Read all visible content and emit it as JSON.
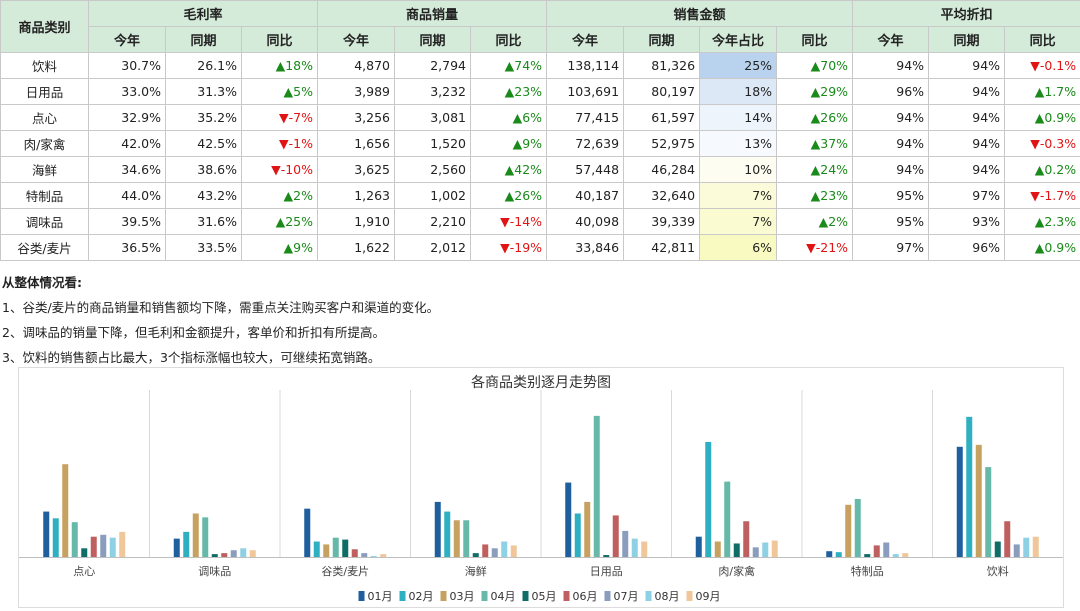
{
  "table": {
    "header": {
      "category": "商品类别",
      "groups": [
        {
          "label": "毛利率",
          "cols": [
            "今年",
            "同期",
            "同比"
          ]
        },
        {
          "label": "商品销量",
          "cols": [
            "今年",
            "同期",
            "同比"
          ]
        },
        {
          "label": "销售金额",
          "cols": [
            "今年",
            "同期",
            "今年占比",
            "同比"
          ]
        },
        {
          "label": "平均折扣",
          "cols": [
            "今年",
            "同期",
            "同比"
          ]
        }
      ]
    },
    "share_colors": [
      "#b9d3ee",
      "#dce8f6",
      "#eef4fb",
      "#f6f9fd",
      "#fdfdf1",
      "#fbfbd9",
      "#fbfbd2",
      "#f9f9c2"
    ],
    "up_arrow": "▲",
    "down_arrow": "▼",
    "rows": [
      {
        "category": "饮料",
        "margin_this": "30.7%",
        "margin_prev": "26.1%",
        "margin_yoy": "18%",
        "margin_dir": "up",
        "qty_this": "4,870",
        "qty_prev": "2,794",
        "qty_yoy": "74%",
        "qty_dir": "up",
        "amt_this": "138,114",
        "amt_prev": "81,326",
        "amt_share": "25%",
        "amt_yoy": "70%",
        "amt_dir": "up",
        "disc_this": "94%",
        "disc_prev": "94%",
        "disc_yoy": "-0.1%",
        "disc_dir": "down"
      },
      {
        "category": "日用品",
        "margin_this": "33.0%",
        "margin_prev": "31.3%",
        "margin_yoy": "5%",
        "margin_dir": "up",
        "qty_this": "3,989",
        "qty_prev": "3,232",
        "qty_yoy": "23%",
        "qty_dir": "up",
        "amt_this": "103,691",
        "amt_prev": "80,197",
        "amt_share": "18%",
        "amt_yoy": "29%",
        "amt_dir": "up",
        "disc_this": "96%",
        "disc_prev": "94%",
        "disc_yoy": "1.7%",
        "disc_dir": "up"
      },
      {
        "category": "点心",
        "margin_this": "32.9%",
        "margin_prev": "35.2%",
        "margin_yoy": "-7%",
        "margin_dir": "down",
        "qty_this": "3,256",
        "qty_prev": "3,081",
        "qty_yoy": "6%",
        "qty_dir": "up",
        "amt_this": "77,415",
        "amt_prev": "61,597",
        "amt_share": "14%",
        "amt_yoy": "26%",
        "amt_dir": "up",
        "disc_this": "94%",
        "disc_prev": "94%",
        "disc_yoy": "0.9%",
        "disc_dir": "up"
      },
      {
        "category": "肉/家禽",
        "margin_this": "42.0%",
        "margin_prev": "42.5%",
        "margin_yoy": "-1%",
        "margin_dir": "down",
        "qty_this": "1,656",
        "qty_prev": "1,520",
        "qty_yoy": "9%",
        "qty_dir": "up",
        "amt_this": "72,639",
        "amt_prev": "52,975",
        "amt_share": "13%",
        "amt_yoy": "37%",
        "amt_dir": "up",
        "disc_this": "94%",
        "disc_prev": "94%",
        "disc_yoy": "-0.3%",
        "disc_dir": "down"
      },
      {
        "category": "海鲜",
        "margin_this": "34.6%",
        "margin_prev": "38.6%",
        "margin_yoy": "-10%",
        "margin_dir": "down",
        "qty_this": "3,625",
        "qty_prev": "2,560",
        "qty_yoy": "42%",
        "qty_dir": "up",
        "amt_this": "57,448",
        "amt_prev": "46,284",
        "amt_share": "10%",
        "amt_yoy": "24%",
        "amt_dir": "up",
        "disc_this": "94%",
        "disc_prev": "94%",
        "disc_yoy": "0.2%",
        "disc_dir": "up"
      },
      {
        "category": "特制品",
        "margin_this": "44.0%",
        "margin_prev": "43.2%",
        "margin_yoy": "2%",
        "margin_dir": "up",
        "qty_this": "1,263",
        "qty_prev": "1,002",
        "qty_yoy": "26%",
        "qty_dir": "up",
        "amt_this": "40,187",
        "amt_prev": "32,640",
        "amt_share": "7%",
        "amt_yoy": "23%",
        "amt_dir": "up",
        "disc_this": "95%",
        "disc_prev": "97%",
        "disc_yoy": "-1.7%",
        "disc_dir": "down"
      },
      {
        "category": "调味品",
        "margin_this": "39.5%",
        "margin_prev": "31.6%",
        "margin_yoy": "25%",
        "margin_dir": "up",
        "qty_this": "1,910",
        "qty_prev": "2,210",
        "qty_yoy": "-14%",
        "qty_dir": "down",
        "amt_this": "40,098",
        "amt_prev": "39,339",
        "amt_share": "7%",
        "amt_yoy": "2%",
        "amt_dir": "up",
        "disc_this": "95%",
        "disc_prev": "93%",
        "disc_yoy": "2.3%",
        "disc_dir": "up"
      },
      {
        "category": "谷类/麦片",
        "margin_this": "36.5%",
        "margin_prev": "33.5%",
        "margin_yoy": "9%",
        "margin_dir": "up",
        "qty_this": "1,622",
        "qty_prev": "2,012",
        "qty_yoy": "-19%",
        "qty_dir": "down",
        "amt_this": "33,846",
        "amt_prev": "42,811",
        "amt_share": "6%",
        "amt_yoy": "-21%",
        "amt_dir": "down",
        "disc_this": "97%",
        "disc_prev": "96%",
        "disc_yoy": "0.9%",
        "disc_dir": "up"
      }
    ]
  },
  "notes": {
    "title": "从整体情况看:",
    "items": [
      "1、谷类/麦片的商品销量和销售额均下降，需重点关注购买客户和渠道的变化。",
      "2、调味品的销量下降，但毛利和金额提升，客单价和折扣有所提高。",
      "3、饮料的销售额占比最大，3个指标涨幅也较大，可继续拓宽销路。"
    ]
  },
  "chart_data": {
    "type": "bar",
    "title": "各商品类别逐月走势图",
    "categories": [
      "点心",
      "调味品",
      "谷类/麦片",
      "海鲜",
      "日用品",
      "肉/家禽",
      "特制品",
      "饮料"
    ],
    "series": [
      {
        "name": "01月",
        "color": "#1f5f9e",
        "values": [
          47,
          19,
          50,
          57,
          77,
          21,
          6,
          114
        ]
      },
      {
        "name": "02月",
        "color": "#2fb0c2",
        "values": [
          40,
          26,
          16,
          47,
          45,
          119,
          5,
          145
        ]
      },
      {
        "name": "03月",
        "color": "#c7a160",
        "values": [
          96,
          45,
          13,
          38,
          57,
          16,
          54,
          116
        ]
      },
      {
        "name": "04月",
        "color": "#66b9a9",
        "values": [
          36,
          41,
          20,
          38,
          146,
          78,
          60,
          93
        ]
      },
      {
        "name": "05月",
        "color": "#0e6d67",
        "values": [
          9,
          3,
          18,
          4,
          2,
          14,
          3,
          16
        ]
      },
      {
        "name": "06月",
        "color": "#c05f5f",
        "values": [
          21,
          4,
          8,
          13,
          43,
          37,
          12,
          37
        ]
      },
      {
        "name": "07月",
        "color": "#8a9dbd",
        "values": [
          23,
          7,
          4,
          9,
          27,
          10,
          15,
          13
        ]
      },
      {
        "name": "08月",
        "color": "#8fd1e4",
        "values": [
          20,
          9,
          1,
          16,
          19,
          15,
          3,
          20
        ]
      },
      {
        "name": "09月",
        "color": "#efc79a",
        "values": [
          26,
          7,
          3,
          12,
          16,
          17,
          4,
          21
        ]
      }
    ],
    "ylim": [
      0,
      150
    ],
    "legend": "bottom",
    "grid": false
  }
}
